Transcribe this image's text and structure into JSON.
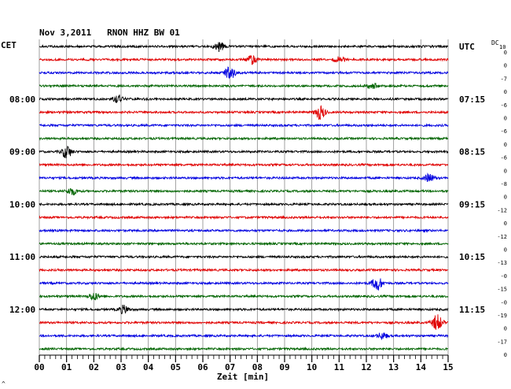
{
  "chart_data": {
    "type": "line",
    "title": "Nov 3,2011   RNON HHZ BW 01",
    "left_timezone": "CET",
    "right_timezone": "UTC",
    "right_scale_header": "DC",
    "right_scale_header_sub": "10",
    "xlabel": "Zeit [min]",
    "xlim": [
      0,
      15
    ],
    "x_ticks": [
      "00",
      "01",
      "02",
      "03",
      "04",
      "05",
      "06",
      "07",
      "08",
      "09",
      "10",
      "11",
      "12",
      "13",
      "14",
      "15"
    ],
    "left_hour_labels": [
      {
        "row": 4,
        "label": "08:00"
      },
      {
        "row": 8,
        "label": "09:00"
      },
      {
        "row": 12,
        "label": "10:00"
      },
      {
        "row": 16,
        "label": "11:00"
      },
      {
        "row": 20,
        "label": "12:00"
      }
    ],
    "right_hour_labels": [
      {
        "row": 0,
        "label": "UTC"
      },
      {
        "row": 4,
        "label": "07:15"
      },
      {
        "row": 8,
        "label": "08:15"
      },
      {
        "row": 12,
        "label": "09:15"
      },
      {
        "row": 16,
        "label": "10:15"
      },
      {
        "row": 20,
        "label": "11:15"
      }
    ],
    "dc_offsets": [
      "0",
      "0",
      "-7",
      "0",
      "-6",
      "0",
      "-6",
      "0",
      "-6",
      "0",
      "-8",
      "0",
      "-12",
      "0",
      "-12",
      "0",
      "-13",
      "-0",
      "-15",
      "-0",
      "-19",
      "0",
      "-17",
      "0"
    ],
    "row_colors": [
      "#000000",
      "#e00000",
      "#0000e0",
      "#006400"
    ],
    "grid": true,
    "rows": 24,
    "minutes_per_row": 15,
    "events": [
      {
        "row": 0,
        "minute": 6.6,
        "amp": 1.2
      },
      {
        "row": 1,
        "minute": 7.8,
        "amp": 1.0
      },
      {
        "row": 1,
        "minute": 11.0,
        "amp": 0.8
      },
      {
        "row": 2,
        "minute": 7.0,
        "amp": 1.6
      },
      {
        "row": 3,
        "minute": 12.2,
        "amp": 0.8
      },
      {
        "row": 4,
        "minute": 2.9,
        "amp": 1.0
      },
      {
        "row": 5,
        "minute": 10.3,
        "amp": 1.8
      },
      {
        "row": 8,
        "minute": 1.0,
        "amp": 1.6
      },
      {
        "row": 10,
        "minute": 14.3,
        "amp": 1.0
      },
      {
        "row": 11,
        "minute": 1.2,
        "amp": 0.9
      },
      {
        "row": 18,
        "minute": 12.4,
        "amp": 1.8
      },
      {
        "row": 19,
        "minute": 2.0,
        "amp": 1.0
      },
      {
        "row": 20,
        "minute": 3.1,
        "amp": 1.0
      },
      {
        "row": 21,
        "minute": 14.6,
        "amp": 2.0
      },
      {
        "row": 22,
        "minute": 12.6,
        "amp": 0.8
      }
    ]
  },
  "footer_mark": "^"
}
